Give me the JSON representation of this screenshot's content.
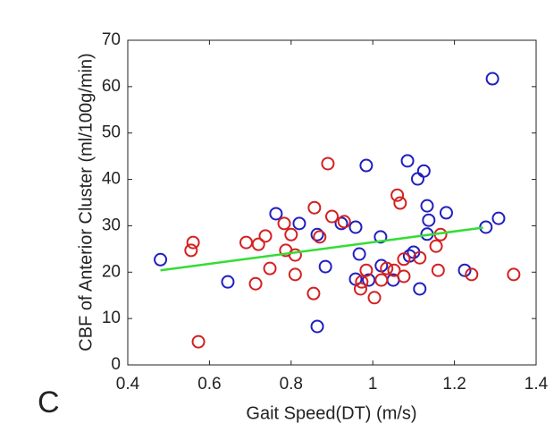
{
  "chart_data": {
    "type": "scatter",
    "x_label": "Gait Speed(DT) (m/s)",
    "y_label": "CBF of Anterior Cluster (ml/100g/min)",
    "panel_label": "C",
    "xlim": [
      0.4,
      1.4
    ],
    "xticks": [
      0.4,
      0.6,
      0.8,
      1,
      1.2,
      1.4
    ],
    "ylim": [
      0,
      70
    ],
    "yticks": [
      0,
      10,
      20,
      30,
      40,
      50,
      60,
      70
    ],
    "grid": false,
    "series": [
      {
        "color": "#1f1fbf",
        "x": [
          0.48,
          0.645,
          0.763,
          0.82,
          0.864,
          0.864,
          0.884,
          0.923,
          0.958,
          0.967,
          0.958,
          0.984,
          1.019,
          1.021,
          0.99,
          1.05,
          1.085,
          1.11,
          1.125,
          1.133,
          1.137,
          1.133,
          1.1,
          1.09,
          1.115,
          1.18,
          1.225,
          1.277,
          1.308,
          1.293
        ],
        "values": [
          22.7,
          17.9,
          32.6,
          30.5,
          28.1,
          8.3,
          21.2,
          30.5,
          29.7,
          23.9,
          18.5,
          43.0,
          27.6,
          21.4,
          18.3,
          18.3,
          44.0,
          40.1,
          41.8,
          34.3,
          31.2,
          28.2,
          24.3,
          23.5,
          16.4,
          32.8,
          20.4,
          29.7,
          31.6,
          61.7
        ]
      },
      {
        "color": "#d42020",
        "x": [
          0.555,
          0.56,
          0.573,
          0.69,
          0.737,
          0.72,
          0.713,
          0.748,
          0.783,
          0.787,
          0.8,
          0.81,
          0.81,
          0.855,
          0.857,
          0.87,
          0.89,
          0.9,
          0.93,
          0.973,
          0.97,
          0.984,
          1.004,
          1.021,
          1.034,
          1.052,
          1.06,
          1.067,
          1.076,
          1.076,
          1.115,
          1.155,
          1.16,
          1.166,
          1.242,
          1.345
        ],
        "values": [
          24.7,
          26.4,
          5.0,
          26.4,
          27.8,
          26.0,
          17.5,
          20.8,
          30.5,
          24.7,
          28.1,
          23.7,
          19.5,
          15.4,
          33.9,
          27.6,
          43.4,
          32.0,
          30.9,
          17.9,
          16.4,
          20.4,
          14.5,
          18.3,
          20.8,
          20.4,
          36.6,
          34.9,
          19.1,
          22.8,
          23.1,
          25.6,
          20.4,
          28.1,
          19.5,
          19.5
        ]
      }
    ],
    "fit_line": {
      "color": "#33dd33",
      "x": [
        0.48,
        1.27
      ],
      "values": [
        20.4,
        29.6
      ]
    }
  }
}
